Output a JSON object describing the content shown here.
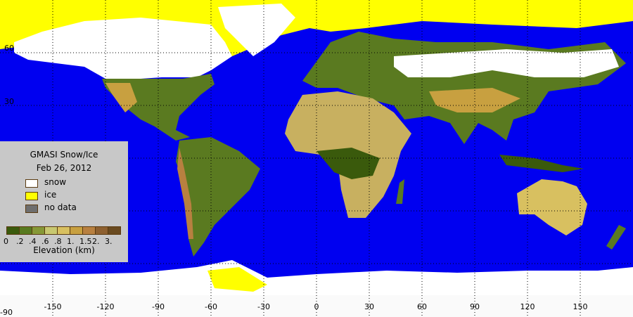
{
  "legend": {
    "title": "GMASI Snow/Ice",
    "date": "Feb 26, 2012",
    "items": [
      {
        "label": "snow",
        "color": "#ffffff"
      },
      {
        "label": "ice",
        "color": "#ffff00"
      },
      {
        "label": "no data",
        "color": "#6e6e6e"
      }
    ],
    "colorbar": {
      "ticks": [
        "0",
        ".2",
        ".4",
        ".6",
        ".8",
        "1.",
        "1.5",
        "2.",
        "3."
      ],
      "colors": [
        "#3a5a0c",
        "#587a20",
        "#869836",
        "#c8c870",
        "#d8c060",
        "#c8a040",
        "#b88040",
        "#8e6030",
        "#6a4a20"
      ],
      "label": "Elevation (km)"
    }
  },
  "axes": {
    "lon_ticks": [
      "-150",
      "-120",
      "-90",
      "-60",
      "-30",
      "0",
      "30",
      "60",
      "90",
      "120",
      "150"
    ],
    "lat_ticks": [
      "60",
      "30"
    ],
    "lat_bottom": "-90"
  },
  "colors": {
    "ocean": "#0000f0",
    "land": "#5a7a20",
    "snow": "#ffffff",
    "ice": "#ffff00",
    "background": "#fafafa"
  }
}
